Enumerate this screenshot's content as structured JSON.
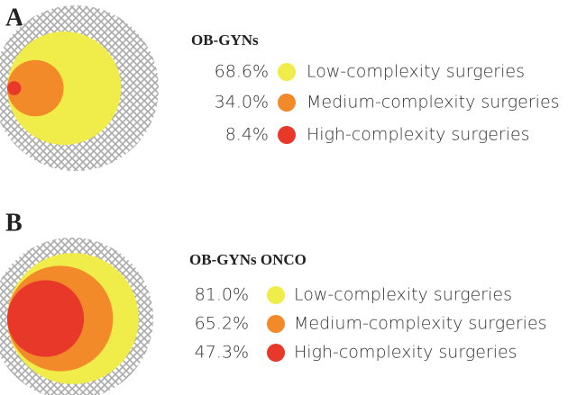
{
  "chart_data": [
    {
      "type": "nested-circles",
      "label": "A",
      "title": "OB-GYNs",
      "categories": [
        "Low-complexity surgeries",
        "Medium-complexity surgeries",
        "High-complexity surgeries"
      ],
      "values": [
        68.6,
        34.0,
        8.4
      ],
      "value_labels": [
        "68.6%",
        "34.0%",
        "8.4%"
      ],
      "colors": [
        "#f0ec4a",
        "#f28a2a",
        "#e8382a"
      ]
    },
    {
      "type": "nested-circles",
      "label": "B",
      "title": "OB-GYNs ONCO",
      "categories": [
        "Low-complexity surgeries",
        "Medium-complexity surgeries",
        "High-complexity surgeries"
      ],
      "values": [
        81.0,
        65.2,
        47.3
      ],
      "value_labels": [
        "81.0%",
        "65.2%",
        "47.3%"
      ],
      "colors": [
        "#f0ec4a",
        "#f28a2a",
        "#e8382a"
      ]
    }
  ]
}
